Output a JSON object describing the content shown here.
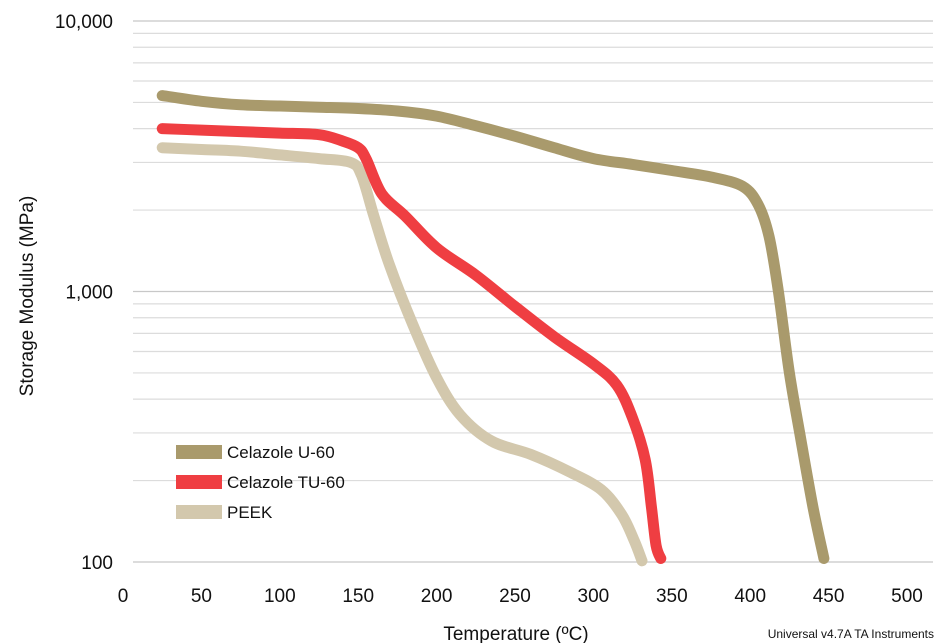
{
  "chart_data": {
    "type": "line",
    "xlabel": "Temperature (ºC)",
    "ylabel": "Storage Modulus (MPa)",
    "xlim": [
      0,
      500
    ],
    "ylim": [
      100,
      10000
    ],
    "y_scale": "log",
    "x_ticks": [
      0,
      50,
      100,
      150,
      200,
      250,
      300,
      350,
      400,
      450,
      500
    ],
    "y_tick_labels": [
      "100",
      "1,000",
      "10,000"
    ],
    "grid": "horizontal",
    "legend_position": "bottom-left",
    "series": [
      {
        "name": "Celazole U-60",
        "color": "#a99a6c",
        "x": [
          25,
          50,
          75,
          100,
          125,
          150,
          175,
          200,
          225,
          250,
          275,
          300,
          325,
          350,
          375,
          395,
          405,
          412,
          418,
          425,
          432,
          440,
          447
        ],
        "y": [
          5300,
          5050,
          4900,
          4850,
          4800,
          4750,
          4650,
          4450,
          4100,
          3750,
          3400,
          3100,
          2950,
          2800,
          2650,
          2450,
          2100,
          1600,
          1000,
          500,
          290,
          160,
          103
        ]
      },
      {
        "name": "Celazole TU-60",
        "color": "#ef3e42",
        "x": [
          25,
          50,
          75,
          100,
          125,
          140,
          150,
          155,
          165,
          180,
          200,
          225,
          250,
          275,
          300,
          315,
          325,
          333,
          337,
          340,
          343
        ],
        "y": [
          4000,
          3950,
          3900,
          3850,
          3800,
          3600,
          3400,
          3100,
          2300,
          1900,
          1450,
          1150,
          880,
          680,
          540,
          450,
          340,
          240,
          160,
          115,
          103
        ]
      },
      {
        "name": "PEEK",
        "color": "#d3c8ad",
        "x": [
          25,
          50,
          75,
          100,
          125,
          145,
          152,
          160,
          170,
          185,
          200,
          215,
          235,
          260,
          285,
          305,
          318,
          326,
          331
        ],
        "y": [
          3400,
          3350,
          3300,
          3200,
          3100,
          3000,
          2700,
          1900,
          1250,
          750,
          480,
          350,
          280,
          250,
          215,
          185,
          150,
          120,
          101
        ]
      }
    ],
    "annotations": [
      "Universal v4.7A TA Instruments"
    ]
  }
}
